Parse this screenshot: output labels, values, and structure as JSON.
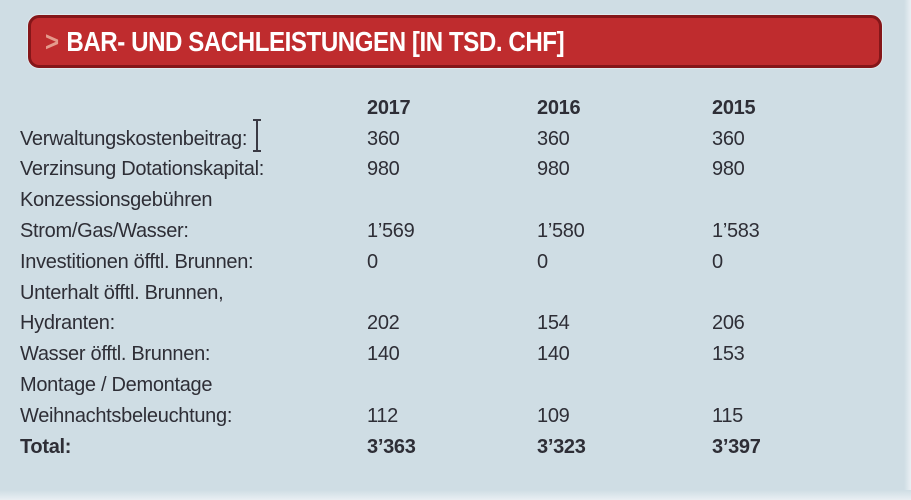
{
  "banner": {
    "chevron": ">",
    "title": "BAR- UND SACHLEISTUNGEN [IN TSD. CHF]"
  },
  "table": {
    "columns": [
      "2017",
      "2016",
      "2015"
    ],
    "rows": [
      {
        "label": "Verwaltungskostenbeitrag:",
        "values": [
          "360",
          "360",
          "360"
        ]
      },
      {
        "label": "Verzinsung Dotationskapital:",
        "values": [
          "980",
          "980",
          "980"
        ]
      },
      {
        "label": "Konzessionsgebühren",
        "values": [
          "",
          "",
          ""
        ]
      },
      {
        "label": "Strom/Gas/Wasser:",
        "values": [
          "1’569",
          "1’580",
          "1’583"
        ]
      },
      {
        "label": "Investitionen öfftl. Brunnen:",
        "values": [
          "0",
          "0",
          "0"
        ]
      },
      {
        "label": "Unterhalt öfftl. Brunnen,",
        "values": [
          "",
          "",
          ""
        ]
      },
      {
        "label": "Hydranten:",
        "values": [
          "202",
          "154",
          "206"
        ]
      },
      {
        "label": "Wasser öfftl. Brunnen:",
        "values": [
          "140",
          "140",
          "153"
        ]
      },
      {
        "label": "Montage / Demontage",
        "values": [
          "",
          "",
          ""
        ]
      },
      {
        "label": "Weihnachtsbeleuchtung:",
        "values": [
          "112",
          "109",
          "115"
        ]
      },
      {
        "label": "Total:",
        "values": [
          "3’363",
          "3’323",
          "3’397"
        ]
      }
    ]
  },
  "colors": {
    "background": "#cfdde4",
    "banner_red": "#bf2c2e",
    "banner_border": "#851619",
    "chevron_salmon": "#e59a8c",
    "text": "#2e2e36"
  }
}
